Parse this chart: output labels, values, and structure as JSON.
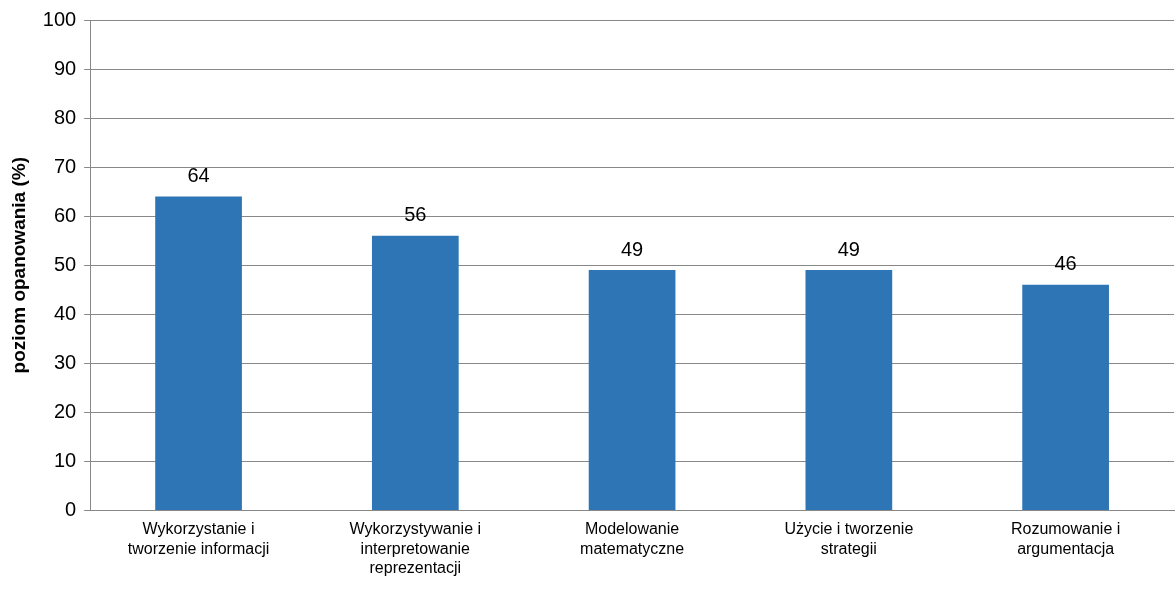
{
  "chart_data": {
    "type": "bar",
    "ylabel": "poziom opanowania (%)",
    "categories": [
      "Wykorzystanie i tworzenie informacji",
      "Wykorzystywanie i interpretowanie reprezentacji",
      "Modelowanie matematyczne",
      "Użycie i tworzenie strategii",
      "Rozumowanie i argumentacja"
    ],
    "values": [
      64,
      56,
      49,
      49,
      46
    ],
    "color": "#2e75b6",
    "ylim": [
      0,
      100
    ],
    "yticks": [
      0,
      10,
      20,
      30,
      40,
      50,
      60,
      70,
      80,
      90,
      100
    ],
    "grid": "y",
    "data_labels": true,
    "legend": false
  }
}
